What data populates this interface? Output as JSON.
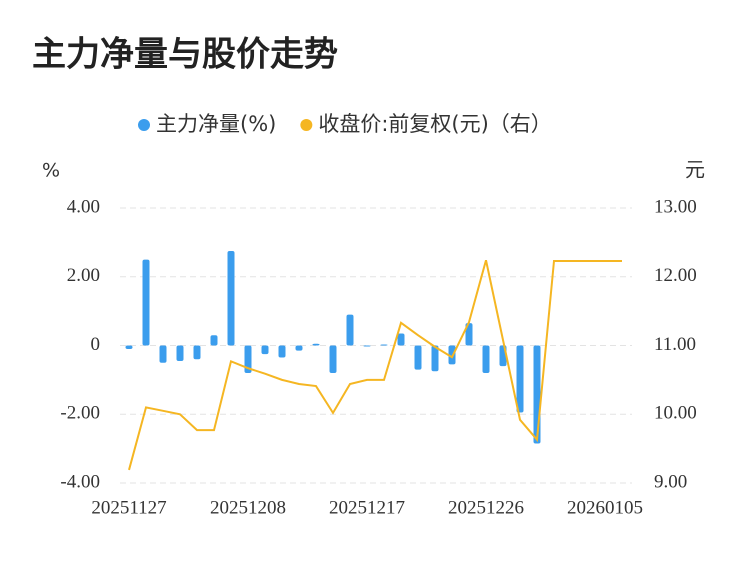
{
  "chart_data": {
    "type": "combo",
    "title": "主力净量与股价走势",
    "y_label": "%",
    "y2_label": "元",
    "categories": [
      "20251127",
      null,
      null,
      null,
      null,
      null,
      null,
      "20251208",
      null,
      null,
      null,
      null,
      null,
      null,
      "20251217",
      null,
      null,
      null,
      null,
      null,
      null,
      "20251226",
      null,
      null,
      null,
      null,
      null,
      null,
      "20260105",
      null
    ],
    "series": [
      {
        "name": "主力净量(%)",
        "type": "bar",
        "color": "#3b9ded",
        "values": [
          -0.1,
          2.5,
          -0.5,
          -0.45,
          -0.4,
          0.3,
          2.75,
          -0.8,
          -0.25,
          -0.35,
          -0.15,
          0.05,
          -0.8,
          0.9,
          -0.02,
          0.03,
          0.35,
          -0.7,
          -0.75,
          -0.55,
          0.65,
          -0.8,
          -0.6,
          -1.95,
          -2.85,
          null,
          null,
          null,
          null,
          null
        ]
      },
      {
        "name": "收盘价:前复权(元)（右）",
        "type": "line",
        "axis": "y2",
        "color": "#f5b622",
        "values": [
          9.19,
          10.1,
          10.05,
          10.0,
          9.77,
          9.77,
          10.77,
          10.67,
          10.59,
          10.5,
          10.44,
          10.41,
          10.02,
          10.44,
          10.5,
          10.5,
          11.33,
          11.15,
          10.98,
          10.83,
          11.34,
          12.24,
          11.08,
          9.92,
          9.63,
          12.23,
          12.23,
          12.23,
          12.23,
          12.23
        ]
      }
    ],
    "ylim": [
      -4,
      4
    ],
    "yticks": [
      {
        "value": 4,
        "label": "4.00"
      },
      {
        "value": 2,
        "label": "2.00"
      },
      0,
      {
        "value": -2,
        "label": "-2.00"
      },
      {
        "value": -4,
        "label": "-4.00"
      }
    ],
    "y2lim": [
      9,
      13
    ],
    "y2ticks": [
      {
        "value": 13,
        "label": "13.00"
      },
      {
        "value": 12,
        "label": "12.00"
      },
      {
        "value": 11,
        "label": "11.00"
      },
      {
        "value": 10,
        "label": "10.00"
      },
      {
        "value": 9,
        "label": "9.00"
      }
    ],
    "grid": true
  }
}
